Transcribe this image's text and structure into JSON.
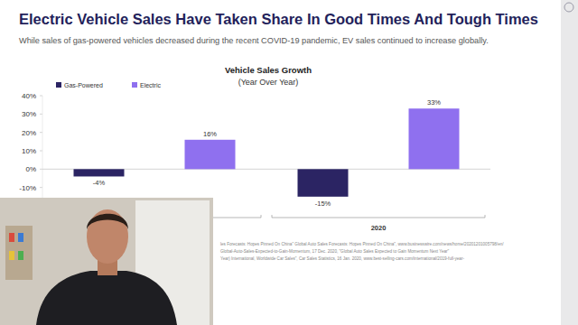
{
  "slide": {
    "title": "Electric Vehicle Sales Have Taken Share In Good Times And Tough Times",
    "subtitle": "While sales of gas-powered vehicles decreased during the recent COVID-19 pandemic, EV sales continued to increase globally.",
    "sources": [
      "les Forecasts: Hopes Pinned On China\" Global Auto Sales Forecasts: Hopes Pinned On China\", www.businesswire.com/news/home/20201201005798/en/",
      "Global-Auto-Sales-Expected-to-Gain-Momentum, 17 Dec. 2020, \"Global Auto Sales Expected to Gain Momentum Next Year\"",
      "Year) International, Worldwide Car Sales\", Car Sales Statistics, 16 Jan. 2020, www.best-selling-cars.com/international/2019-full-year-"
    ]
  },
  "chart_data": {
    "type": "bar",
    "title": "Vehicle Sales Growth",
    "subtitle": "(Year Over Year)",
    "categories": [
      null,
      "2020"
    ],
    "series": [
      {
        "name": "Gas-Powered",
        "color": "#2b2463",
        "values": [
          -4,
          -15
        ],
        "value_labels": [
          "-4%",
          "-15%"
        ]
      },
      {
        "name": "Electric",
        "color": "#8f70ef",
        "values": [
          16,
          33
        ],
        "value_labels": [
          "16%",
          "33%"
        ]
      }
    ],
    "ylim": [
      -20,
      40
    ],
    "yticks": [
      {
        "value": -10,
        "label": "-10%"
      },
      {
        "value": 0,
        "label": "0%"
      },
      {
        "value": 10,
        "label": "10%"
      },
      {
        "value": 20,
        "label": "20%"
      },
      {
        "value": 30,
        "label": "30%"
      },
      {
        "value": 40,
        "label": "40%"
      }
    ],
    "grid": false,
    "legend": "top-left",
    "data_labels": true
  }
}
